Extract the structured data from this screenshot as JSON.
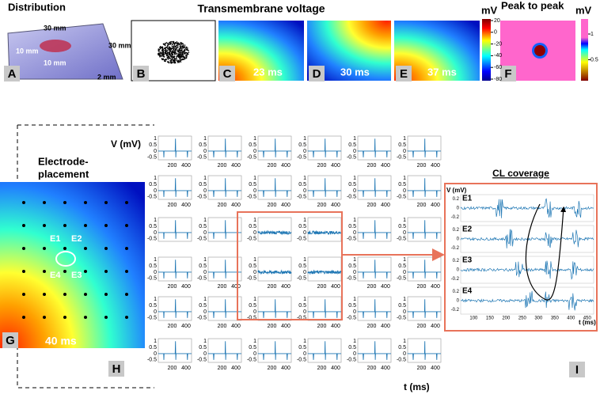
{
  "header": {
    "distribution": "Distribution",
    "transmembrane": "Transmembrane voltage",
    "peak": "Peak to peak"
  },
  "panel_labels": [
    "A",
    "B",
    "C",
    "D",
    "E",
    "F",
    "G",
    "H",
    "I"
  ],
  "panel_a": {
    "dims": [
      "30 mm",
      "30 mm",
      "10 mm",
      "10 mm",
      "2 mm"
    ]
  },
  "times": [
    "23 ms",
    "30 ms",
    "37 ms",
    "40 ms"
  ],
  "voltage_colorbar": {
    "unit": "mV",
    "ticks": [
      20,
      0,
      -20,
      -40,
      -60,
      -80
    ]
  },
  "peak_colorbar": {
    "unit": "mV",
    "ticks": [
      1,
      0.5
    ]
  },
  "electrode": {
    "title": [
      "Electrode-",
      "placement"
    ],
    "labels": [
      "E1",
      "E2",
      "E4",
      "E3"
    ]
  },
  "grid_plots": {
    "ylabel": "V (mV)",
    "xlabel": "t (ms)",
    "yticks": [
      1,
      0.5,
      0,
      -0.5
    ],
    "xticks": [
      200,
      400
    ]
  },
  "cl": {
    "title": "CL coverage",
    "ylabel": "V (mV)",
    "xlabel": "t (ms)",
    "electrodes": [
      "E1",
      "E2",
      "E3",
      "E4"
    ],
    "yticks": [
      0.2,
      0,
      -0.2
    ],
    "xticks": [
      100,
      150,
      200,
      250,
      300,
      350,
      400,
      450
    ]
  }
}
